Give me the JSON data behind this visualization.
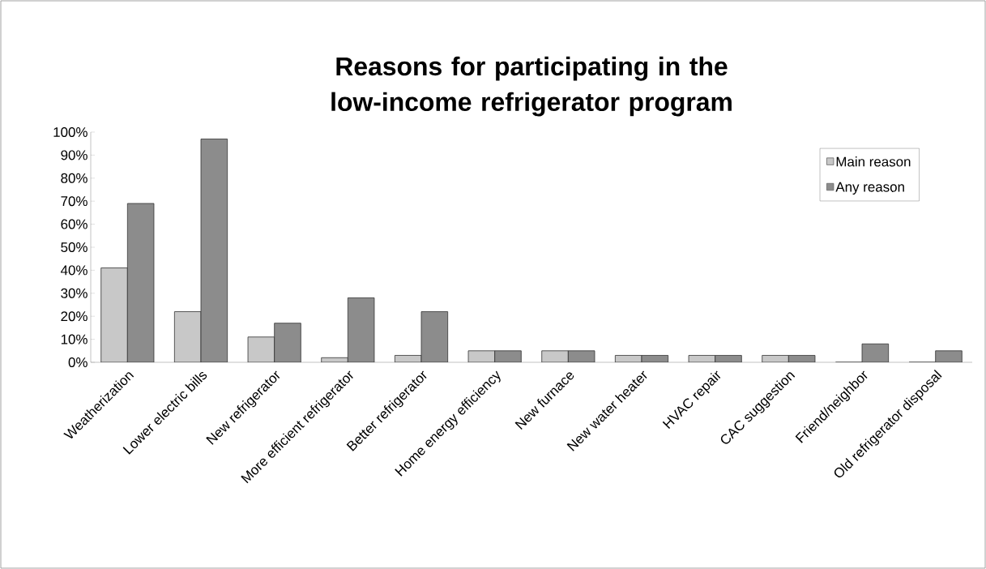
{
  "chart_data": {
    "type": "bar",
    "title": "Reasons for participating in the low-income refrigerator program",
    "categories": [
      "Weatherization",
      "Lower electric bills",
      "New refrigerator",
      "More efficient refrigerator",
      "Better refrigerator",
      "Home energy efficiency",
      "New furnace",
      "New water heater",
      "HVAC repair",
      "CAC suggestion",
      "Friend/neighbor",
      "Old refrigerator disposal"
    ],
    "series": [
      {
        "name": "Main reason",
        "color": "#c8c8c8",
        "values": [
          41,
          22,
          11,
          2,
          3,
          5,
          5,
          3,
          3,
          3,
          0,
          0
        ]
      },
      {
        "name": "Any reason",
        "color": "#8c8c8c",
        "values": [
          69,
          97,
          17,
          28,
          22,
          5,
          5,
          3,
          3,
          3,
          8,
          5
        ]
      }
    ],
    "ylim": [
      0,
      100
    ],
    "yticks": [
      {
        "value": 0,
        "label": "0%"
      },
      {
        "value": 10,
        "label": "10%"
      },
      {
        "value": 20,
        "label": "20%"
      },
      {
        "value": 30,
        "label": "30%"
      },
      {
        "value": 40,
        "label": "40%"
      },
      {
        "value": 50,
        "label": "50%"
      },
      {
        "value": 60,
        "label": "60%"
      },
      {
        "value": 70,
        "label": "70%"
      },
      {
        "value": 80,
        "label": "80%"
      },
      {
        "value": 90,
        "label": "90%"
      },
      {
        "value": 100,
        "label": "100%"
      }
    ],
    "grid": false,
    "legend": "top right"
  }
}
